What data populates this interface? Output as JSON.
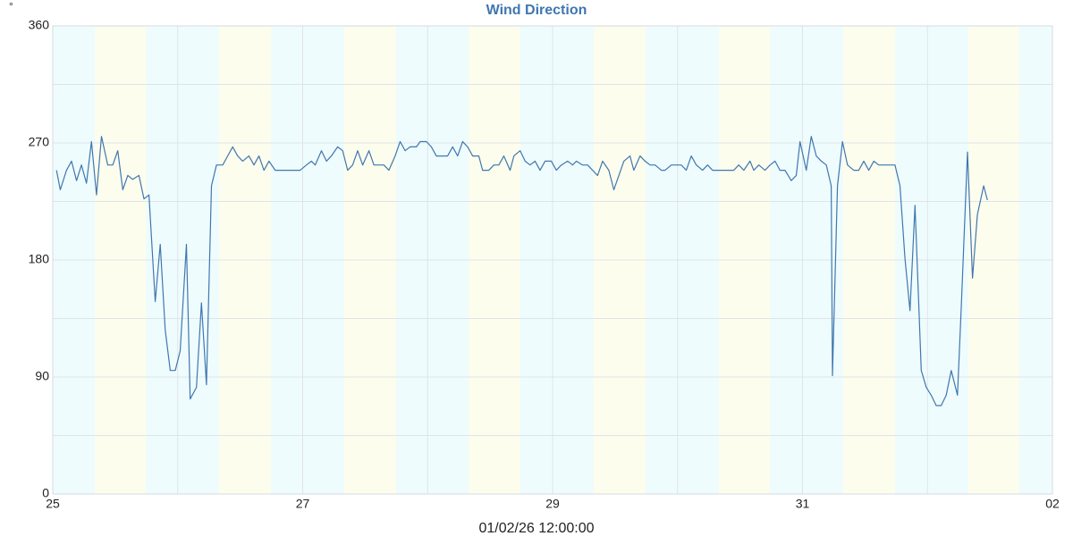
{
  "chart_data": {
    "type": "line",
    "title": "Wind Direction",
    "y_label": "°",
    "x_label": "01/02/26 12:00:00",
    "color": "#3f77b0",
    "xlim": [
      25,
      33
    ],
    "xticks": [
      25,
      27,
      29,
      31,
      {
        "value": 33,
        "label": "02"
      }
    ],
    "x_minor_grid": [
      26,
      28,
      30,
      32
    ],
    "ylim": [
      0,
      360
    ],
    "yticks": [
      0,
      90,
      180,
      270,
      360
    ],
    "y_minor_grid": [
      45,
      135,
      225,
      315
    ],
    "grid": true,
    "x": [
      25.03,
      25.06,
      25.11,
      25.15,
      25.19,
      25.23,
      25.27,
      25.31,
      25.35,
      25.39,
      25.44,
      25.48,
      25.52,
      25.56,
      25.6,
      25.64,
      25.69,
      25.73,
      25.77,
      25.82,
      25.86,
      25.9,
      25.94,
      25.98,
      26.02,
      26.07,
      26.1,
      26.15,
      26.19,
      26.23,
      26.27,
      26.31,
      26.36,
      26.4,
      26.44,
      26.48,
      26.52,
      26.57,
      26.61,
      26.65,
      26.69,
      26.73,
      26.78,
      26.85,
      26.92,
      26.98,
      27.03,
      27.07,
      27.1,
      27.15,
      27.19,
      27.23,
      27.28,
      27.32,
      27.36,
      27.4,
      27.44,
      27.48,
      27.53,
      27.57,
      27.61,
      27.65,
      27.69,
      27.74,
      27.78,
      27.82,
      27.86,
      27.91,
      27.94,
      27.99,
      28.03,
      28.07,
      28.11,
      28.16,
      28.2,
      28.24,
      28.28,
      28.32,
      28.36,
      28.41,
      28.44,
      28.49,
      28.53,
      28.57,
      28.61,
      28.66,
      28.69,
      28.74,
      28.78,
      28.82,
      28.86,
      28.9,
      28.94,
      28.99,
      29.03,
      29.07,
      29.12,
      29.16,
      29.19,
      29.24,
      29.28,
      29.32,
      29.36,
      29.4,
      29.45,
      29.49,
      29.53,
      29.57,
      29.62,
      29.65,
      29.7,
      29.74,
      29.78,
      29.82,
      29.87,
      29.9,
      29.95,
      29.99,
      30.03,
      30.07,
      30.11,
      30.15,
      30.2,
      30.24,
      30.28,
      30.36,
      30.45,
      30.49,
      30.53,
      30.58,
      30.61,
      30.65,
      30.7,
      30.74,
      30.78,
      30.82,
      30.86,
      30.91,
      30.95,
      30.98,
      31.03,
      31.07,
      31.11,
      31.15,
      31.19,
      31.23,
      31.24,
      31.28,
      31.32,
      31.36,
      31.41,
      31.45,
      31.49,
      31.53,
      31.57,
      31.61,
      31.66,
      31.7,
      31.74,
      31.78,
      31.82,
      31.86,
      31.9,
      31.95,
      31.99,
      32.03,
      32.07,
      32.11,
      32.15,
      32.19,
      32.24,
      32.27,
      32.32,
      32.36,
      32.4,
      32.45,
      32.48
    ],
    "values": [
      249,
      234,
      249,
      256,
      241,
      253,
      239,
      271,
      230,
      275,
      253,
      253,
      264,
      234,
      245,
      242,
      245,
      227,
      230,
      148,
      192,
      126,
      95,
      95,
      110,
      192,
      73,
      82,
      147,
      84,
      237,
      253,
      253,
      260,
      267,
      260,
      256,
      260,
      253,
      260,
      249,
      256,
      249,
      249,
      249,
      249,
      253,
      256,
      253,
      264,
      256,
      260,
      267,
      264,
      249,
      253,
      264,
      253,
      264,
      253,
      253,
      253,
      249,
      260,
      271,
      264,
      267,
      267,
      271,
      271,
      267,
      260,
      260,
      260,
      267,
      260,
      271,
      267,
      260,
      260,
      249,
      249,
      253,
      253,
      260,
      249,
      260,
      264,
      256,
      253,
      256,
      249,
      256,
      256,
      249,
      253,
      256,
      253,
      256,
      253,
      253,
      249,
      245,
      256,
      249,
      234,
      245,
      256,
      260,
      249,
      260,
      256,
      253,
      253,
      249,
      249,
      253,
      253,
      253,
      249,
      260,
      253,
      249,
      253,
      249,
      249,
      249,
      253,
      249,
      256,
      249,
      253,
      249,
      253,
      256,
      249,
      249,
      241,
      245,
      271,
      249,
      275,
      260,
      256,
      253,
      237,
      91,
      237,
      271,
      253,
      249,
      249,
      256,
      249,
      256,
      253,
      253,
      253,
      253,
      237,
      181,
      141,
      222,
      95,
      82,
      76,
      68,
      68,
      76,
      95,
      76,
      143,
      263,
      166,
      215,
      237,
      226
    ]
  }
}
